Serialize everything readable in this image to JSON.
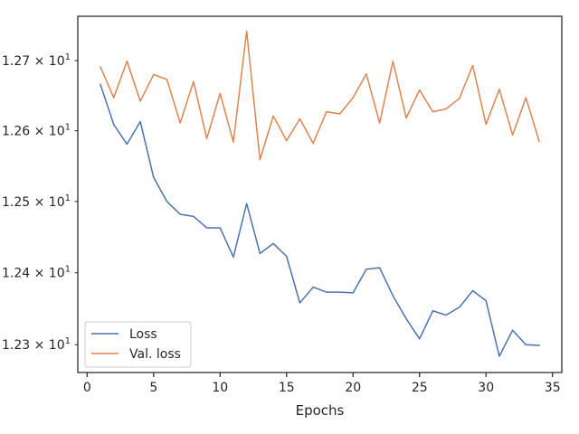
{
  "chart_data": {
    "type": "line",
    "xlabel": "Epochs",
    "ylabel": "",
    "xlim": [
      -0.7,
      35.7
    ],
    "ylim": [
      12.2615,
      12.7635
    ],
    "y_scale": "log",
    "grid": false,
    "legend_position": "lower-left",
    "x_ticks": [
      0,
      5,
      10,
      15,
      20,
      25,
      30,
      35
    ],
    "y_ticks": [
      {
        "value": 12.3,
        "mantissa": "1.23",
        "exponent": "1"
      },
      {
        "value": 12.4,
        "mantissa": "1.24",
        "exponent": "1"
      },
      {
        "value": 12.5,
        "mantissa": "1.25",
        "exponent": "1"
      },
      {
        "value": 12.6,
        "mantissa": "1.26",
        "exponent": "1"
      },
      {
        "value": 12.7,
        "mantissa": "1.27",
        "exponent": "1"
      }
    ],
    "x": [
      1,
      2,
      3,
      4,
      5,
      6,
      7,
      8,
      9,
      10,
      11,
      12,
      13,
      14,
      15,
      16,
      17,
      18,
      19,
      20,
      21,
      22,
      23,
      24,
      25,
      26,
      27,
      28,
      29,
      30,
      31,
      32,
      33,
      34
    ],
    "series": [
      {
        "name": "Loss",
        "color": "#4c72b0",
        "values": [
          12.666,
          12.609,
          12.581,
          12.613,
          12.534,
          12.5,
          12.482,
          12.479,
          12.463,
          12.463,
          12.422,
          12.497,
          12.427,
          12.441,
          12.423,
          12.358,
          12.38,
          12.373,
          12.373,
          12.372,
          12.405,
          12.407,
          12.368,
          12.336,
          12.308,
          12.347,
          12.341,
          12.352,
          12.375,
          12.361,
          12.284,
          12.32,
          12.3,
          12.299
        ]
      },
      {
        "name": "Val. loss",
        "color": "#dd8452",
        "values": [
          12.691,
          12.647,
          12.699,
          12.642,
          12.68,
          12.673,
          12.611,
          12.67,
          12.589,
          12.653,
          12.584,
          12.742,
          12.559,
          12.621,
          12.586,
          12.617,
          12.582,
          12.627,
          12.624,
          12.647,
          12.681,
          12.611,
          12.699,
          12.618,
          12.658,
          12.627,
          12.631,
          12.646,
          12.693,
          12.609,
          12.659,
          12.594,
          12.647,
          12.585
        ]
      }
    ]
  }
}
